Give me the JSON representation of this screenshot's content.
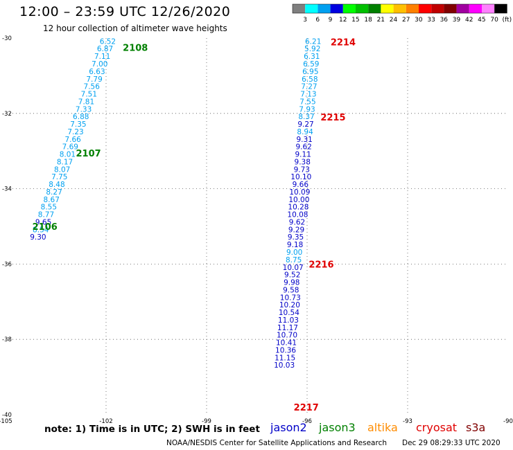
{
  "header": {
    "title": "12:00 – 23:59 UTC 12/26/2020",
    "subtitle": "12 hour collection of altimeter wave heights"
  },
  "colorbar": {
    "labels": [
      "3",
      "6",
      "9",
      "12",
      "15",
      "18",
      "21",
      "24",
      "27",
      "30",
      "33",
      "36",
      "39",
      "42",
      "45",
      "70",
      "(ft)"
    ],
    "colors": [
      "#7f7f7f",
      "#00ffff",
      "#00a0f0",
      "#0000e0",
      "#00ff00",
      "#00c000",
      "#008000",
      "#ffff00",
      "#ffc000",
      "#ff8000",
      "#ff0000",
      "#c00000",
      "#800000",
      "#a000a0",
      "#ff00ff",
      "#ff80ff",
      "#000000"
    ]
  },
  "footer": {
    "note": "note:  1) Time is in UTC;  2) SWH is in feet",
    "satellites": [
      {
        "name": "jason2",
        "color": "#0000c8"
      },
      {
        "name": "jason3",
        "color": "#008000"
      },
      {
        "name": "altika",
        "color": "#ff8c00"
      },
      {
        "name": "cryosat",
        "color": "#e00000"
      },
      {
        "name": "s3a",
        "color": "#800000"
      }
    ],
    "credit": "NOAA/NESDIS Center for Satellite Applications and Research",
    "timestamp": "Dec 29 08:29:33 UTC 2020"
  },
  "chart_data": {
    "type": "scatter",
    "xlim": [
      -105,
      -90
    ],
    "ylim": [
      -40,
      -30
    ],
    "xticks": [
      "-105",
      "-102",
      "-99",
      "-96",
      "-93",
      "-90"
    ],
    "yticks": [
      "-30",
      "-32",
      "-34",
      "-36",
      "-38",
      "-40"
    ],
    "xtick_values": [
      -105,
      -102,
      -99,
      -96,
      -93,
      -90
    ],
    "ytick_values": [
      -30,
      -32,
      -34,
      -36,
      -38,
      -40
    ],
    "grid": "dotted",
    "colors": {
      "light": "#00a0f0",
      "dark": "#0000c8",
      "green": "#008000",
      "red": "#e00000"
    },
    "time_labels": [
      {
        "text": "2108",
        "lon": -101.5,
        "lat": -30.25,
        "color": "green"
      },
      {
        "text": "2107",
        "lon": -102.9,
        "lat": -33.05,
        "color": "green"
      },
      {
        "text": "2106",
        "lon": -104.2,
        "lat": -35.0,
        "color": "green"
      },
      {
        "text": "2214",
        "lon": -95.3,
        "lat": -30.1,
        "color": "red"
      },
      {
        "text": "2215",
        "lon": -95.6,
        "lat": -32.1,
        "color": "red"
      },
      {
        "text": "2216",
        "lon": -95.95,
        "lat": -36.0,
        "color": "red"
      },
      {
        "text": "2217",
        "lon": -96.4,
        "lat": -39.8,
        "color": "red"
      }
    ],
    "tracks": [
      {
        "name": "track west",
        "points": [
          {
            "lon": -101.95,
            "lat": -30.08,
            "v": "6.52",
            "c": "light"
          },
          {
            "lon": -102.03,
            "lat": -30.28,
            "v": "6.87",
            "c": "light"
          },
          {
            "lon": -102.11,
            "lat": -30.48,
            "v": "7.11",
            "c": "light"
          },
          {
            "lon": -102.19,
            "lat": -30.68,
            "v": "7.00",
            "c": "light"
          },
          {
            "lon": -102.27,
            "lat": -30.88,
            "v": "6.63",
            "c": "light"
          },
          {
            "lon": -102.35,
            "lat": -31.08,
            "v": "7.79",
            "c": "light"
          },
          {
            "lon": -102.43,
            "lat": -31.28,
            "v": "7.56",
            "c": "light"
          },
          {
            "lon": -102.51,
            "lat": -31.48,
            "v": "7.51",
            "c": "light"
          },
          {
            "lon": -102.59,
            "lat": -31.68,
            "v": "7.81",
            "c": "light"
          },
          {
            "lon": -102.67,
            "lat": -31.88,
            "v": "7.33",
            "c": "light"
          },
          {
            "lon": -102.75,
            "lat": -32.08,
            "v": "6.88",
            "c": "light"
          },
          {
            "lon": -102.83,
            "lat": -32.28,
            "v": "7.35",
            "c": "light"
          },
          {
            "lon": -102.91,
            "lat": -32.48,
            "v": "7.23",
            "c": "light"
          },
          {
            "lon": -102.99,
            "lat": -32.68,
            "v": "7.66",
            "c": "light"
          },
          {
            "lon": -103.07,
            "lat": -32.88,
            "v": "7.69",
            "c": "light"
          },
          {
            "lon": -103.15,
            "lat": -33.08,
            "v": "8.01",
            "c": "light"
          },
          {
            "lon": -103.23,
            "lat": -33.28,
            "v": "8.17",
            "c": "light"
          },
          {
            "lon": -103.31,
            "lat": -33.48,
            "v": "8.07",
            "c": "light"
          },
          {
            "lon": -103.39,
            "lat": -33.68,
            "v": "7.75",
            "c": "light"
          },
          {
            "lon": -103.47,
            "lat": -33.88,
            "v": "8.48",
            "c": "light"
          },
          {
            "lon": -103.55,
            "lat": -34.08,
            "v": "8.27",
            "c": "light"
          },
          {
            "lon": -103.63,
            "lat": -34.28,
            "v": "8.67",
            "c": "light"
          },
          {
            "lon": -103.71,
            "lat": -34.48,
            "v": "8.55",
            "c": "light"
          },
          {
            "lon": -103.79,
            "lat": -34.68,
            "v": "8.77",
            "c": "light"
          },
          {
            "lon": -103.87,
            "lat": -34.88,
            "v": "9.65",
            "c": "dark"
          },
          {
            "lon": -103.95,
            "lat": -35.08,
            "v": "8.54",
            "c": "light"
          },
          {
            "lon": -104.03,
            "lat": -35.28,
            "v": "9.30",
            "c": "dark"
          }
        ]
      },
      {
        "name": "track east",
        "points": [
          {
            "lon": -95.82,
            "lat": -30.08,
            "v": "6.21",
            "c": "light"
          },
          {
            "lon": -95.84,
            "lat": -30.28,
            "v": "5.92",
            "c": "light"
          },
          {
            "lon": -95.86,
            "lat": -30.48,
            "v": "6.31",
            "c": "light"
          },
          {
            "lon": -95.88,
            "lat": -30.68,
            "v": "6.59",
            "c": "light"
          },
          {
            "lon": -95.9,
            "lat": -30.88,
            "v": "6.95",
            "c": "light"
          },
          {
            "lon": -95.92,
            "lat": -31.08,
            "v": "6.58",
            "c": "light"
          },
          {
            "lon": -95.94,
            "lat": -31.28,
            "v": "7.27",
            "c": "light"
          },
          {
            "lon": -95.96,
            "lat": -31.48,
            "v": "7.13",
            "c": "light"
          },
          {
            "lon": -95.98,
            "lat": -31.68,
            "v": "7.55",
            "c": "light"
          },
          {
            "lon": -96.0,
            "lat": -31.88,
            "v": "7.93",
            "c": "light"
          },
          {
            "lon": -96.02,
            "lat": -32.08,
            "v": "8.37",
            "c": "light"
          },
          {
            "lon": -96.04,
            "lat": -32.28,
            "v": "9.27",
            "c": "dark"
          },
          {
            "lon": -96.06,
            "lat": -32.48,
            "v": "8.94",
            "c": "light"
          },
          {
            "lon": -96.08,
            "lat": -32.68,
            "v": "9.31",
            "c": "dark"
          },
          {
            "lon": -96.1,
            "lat": -32.88,
            "v": "9.62",
            "c": "dark"
          },
          {
            "lon": -96.12,
            "lat": -33.08,
            "v": "9.11",
            "c": "dark"
          },
          {
            "lon": -96.14,
            "lat": -33.28,
            "v": "9.38",
            "c": "dark"
          },
          {
            "lon": -96.16,
            "lat": -33.48,
            "v": "9.73",
            "c": "dark"
          },
          {
            "lon": -96.18,
            "lat": -33.68,
            "v": "10.10",
            "c": "dark"
          },
          {
            "lon": -96.2,
            "lat": -33.88,
            "v": "9.66",
            "c": "dark"
          },
          {
            "lon": -96.22,
            "lat": -34.08,
            "v": "10.09",
            "c": "dark"
          },
          {
            "lon": -96.24,
            "lat": -34.28,
            "v": "10.00",
            "c": "dark"
          },
          {
            "lon": -96.26,
            "lat": -34.48,
            "v": "10.28",
            "c": "dark"
          },
          {
            "lon": -96.28,
            "lat": -34.68,
            "v": "10.08",
            "c": "dark"
          },
          {
            "lon": -96.3,
            "lat": -34.88,
            "v": "9.62",
            "c": "dark"
          },
          {
            "lon": -96.32,
            "lat": -35.08,
            "v": "9.29",
            "c": "dark"
          },
          {
            "lon": -96.34,
            "lat": -35.28,
            "v": "9.35",
            "c": "dark"
          },
          {
            "lon": -96.36,
            "lat": -35.48,
            "v": "9.18",
            "c": "dark"
          },
          {
            "lon": -96.38,
            "lat": -35.68,
            "v": "9.00",
            "c": "light"
          },
          {
            "lon": -96.4,
            "lat": -35.88,
            "v": "8.75",
            "c": "light"
          },
          {
            "lon": -96.42,
            "lat": -36.08,
            "v": "10.07",
            "c": "dark"
          },
          {
            "lon": -96.44,
            "lat": -36.28,
            "v": "9.52",
            "c": "dark"
          },
          {
            "lon": -96.46,
            "lat": -36.48,
            "v": "9.98",
            "c": "dark"
          },
          {
            "lon": -96.48,
            "lat": -36.68,
            "v": "9.58",
            "c": "dark"
          },
          {
            "lon": -96.5,
            "lat": -36.88,
            "v": "10.73",
            "c": "dark"
          },
          {
            "lon": -96.52,
            "lat": -37.08,
            "v": "10.20",
            "c": "dark"
          },
          {
            "lon": -96.54,
            "lat": -37.28,
            "v": "10.54",
            "c": "dark"
          },
          {
            "lon": -96.56,
            "lat": -37.48,
            "v": "11.03",
            "c": "dark"
          },
          {
            "lon": -96.58,
            "lat": -37.68,
            "v": "11.17",
            "c": "dark"
          },
          {
            "lon": -96.6,
            "lat": -37.88,
            "v": "10.70",
            "c": "dark"
          },
          {
            "lon": -96.62,
            "lat": -38.08,
            "v": "10.41",
            "c": "dark"
          },
          {
            "lon": -96.64,
            "lat": -38.28,
            "v": "10.36",
            "c": "dark"
          },
          {
            "lon": -96.66,
            "lat": -38.48,
            "v": "11.15",
            "c": "dark"
          },
          {
            "lon": -96.68,
            "lat": -38.68,
            "v": "10.03",
            "c": "dark"
          }
        ]
      }
    ]
  }
}
